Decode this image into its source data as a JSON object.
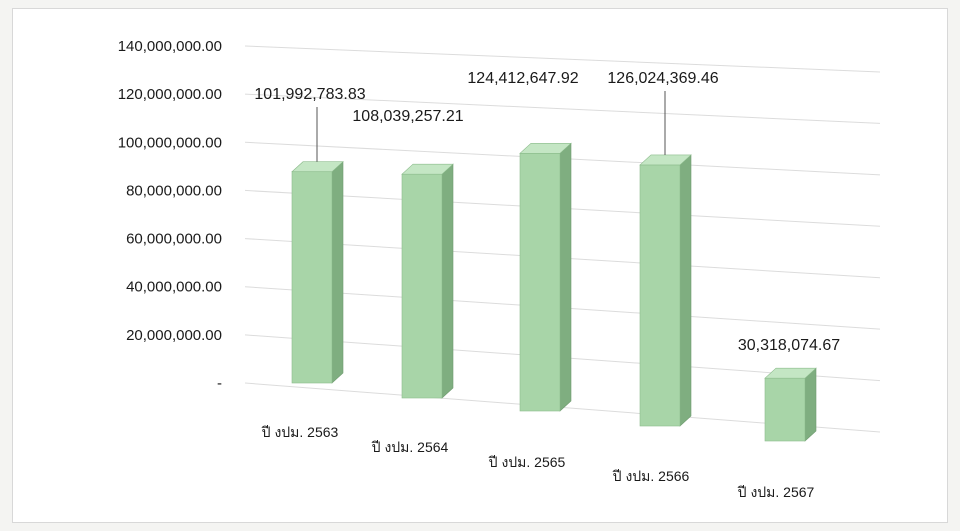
{
  "chart_data": {
    "type": "bar",
    "categories": [
      "ปี งปม. 2563",
      "ปี งปม. 2564",
      "ปี งปม. 2565",
      "ปี งปม. 2566",
      "ปี งปม. 2567"
    ],
    "values": [
      101992783.83,
      108039257.21,
      124412647.92,
      126024369.46,
      30318074.67
    ],
    "value_labels": [
      "101,992,783.83",
      "108,039,257.21",
      "124,412,647.92",
      "126,024,369.46",
      "30,318,074.67"
    ],
    "y_ticks": [
      "-",
      "20,000,000.00",
      "40,000,000.00",
      "60,000,000.00",
      "80,000,000.00",
      "100,000,000.00",
      "120,000,000.00",
      "140,000,000.00"
    ],
    "ylim": [
      0,
      140000000
    ],
    "title": "",
    "xlabel": "",
    "ylabel": "",
    "grid": true,
    "style": "3d-column",
    "colors": {
      "bar_front": "#a8d5a8",
      "bar_side": "#7fae80",
      "bar_top": "#c4e6c4",
      "grid": "#dcdcdc"
    }
  }
}
